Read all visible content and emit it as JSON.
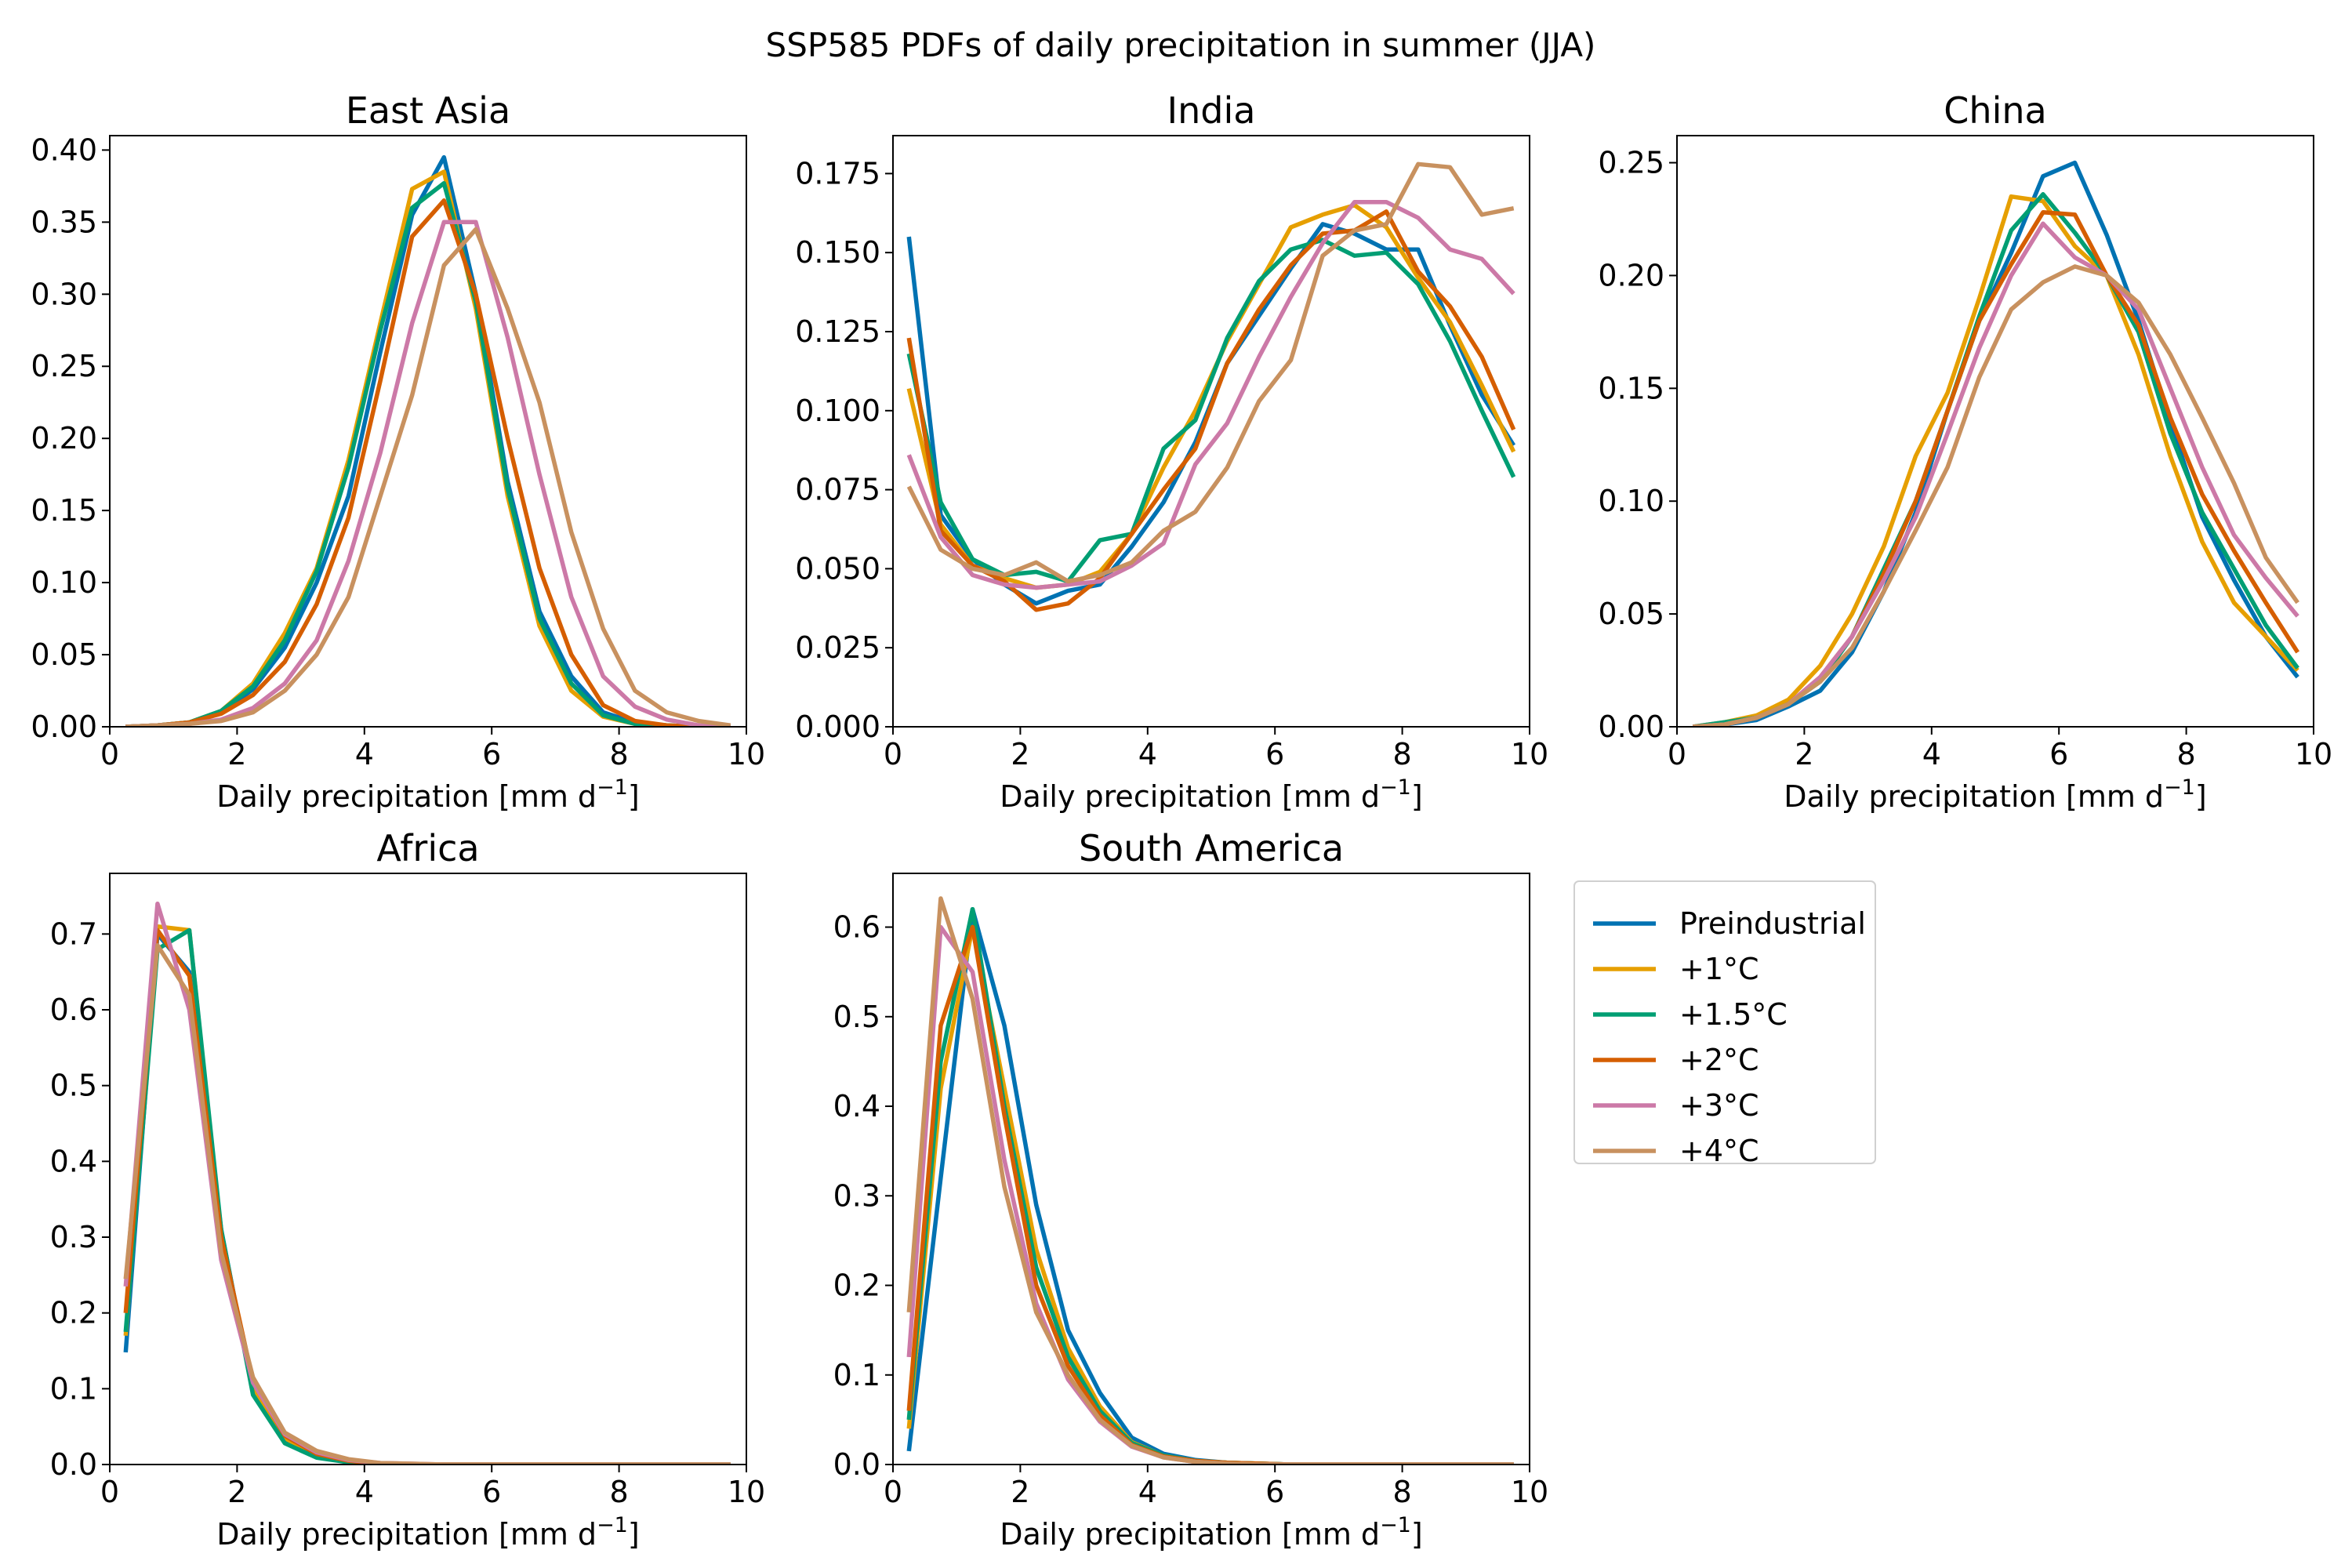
{
  "figure": {
    "title": "SSP585 PDFs of daily precipitation in summer (JJA)"
  },
  "legend": {
    "placement": "right of South America panel",
    "entries": [
      {
        "name": "Preindustrial",
        "color": "#0072b2"
      },
      {
        "name": "+1°C",
        "color": "#e69f00"
      },
      {
        "name": "+1.5°C",
        "color": "#009e73"
      },
      {
        "name": "+2°C",
        "color": "#d55e00"
      },
      {
        "name": "+3°C",
        "color": "#cc79a7"
      },
      {
        "name": "+4°C",
        "color": "#c8915f"
      }
    ]
  },
  "chart_data": [
    {
      "type": "line",
      "title": "East Asia",
      "xlabel_text": "Daily precipitation [mm d",
      "xlabel_sup": "−1",
      "xlabel_end": "]",
      "xlim": [
        0,
        10
      ],
      "ylim": [
        0,
        0.41
      ],
      "xticks": [
        0,
        2,
        4,
        6,
        8,
        10
      ],
      "xtick_labels": [
        "0",
        "2",
        "4",
        "6",
        "8",
        "10"
      ],
      "yticks": [
        0,
        0.05,
        0.1,
        0.15,
        0.2,
        0.25,
        0.3,
        0.35,
        0.4
      ],
      "ytick_labels": [
        "0.00",
        "0.05",
        "0.10",
        "0.15",
        "0.20",
        "0.25",
        "0.30",
        "0.35",
        "0.40"
      ],
      "x": [
        0.25,
        0.75,
        1.25,
        1.75,
        2.25,
        2.75,
        3.25,
        3.75,
        4.25,
        4.75,
        5.25,
        5.75,
        6.25,
        6.75,
        7.25,
        7.75,
        8.25,
        8.75,
        9.25,
        9.75
      ],
      "series": [
        {
          "values": [
            0,
            0.001,
            0.003,
            0.01,
            0.026,
            0.055,
            0.1,
            0.16,
            0.26,
            0.355,
            0.395,
            0.3,
            0.17,
            0.08,
            0.035,
            0.01,
            0.003,
            0.001,
            0,
            0
          ]
        },
        {
          "values": [
            0,
            0.001,
            0.003,
            0.011,
            0.03,
            0.065,
            0.11,
            0.185,
            0.28,
            0.373,
            0.385,
            0.29,
            0.16,
            0.07,
            0.025,
            0.007,
            0.002,
            0.001,
            0,
            0
          ]
        },
        {
          "values": [
            0,
            0.001,
            0.003,
            0.011,
            0.028,
            0.06,
            0.108,
            0.18,
            0.275,
            0.36,
            0.377,
            0.295,
            0.165,
            0.075,
            0.03,
            0.008,
            0.002,
            0.001,
            0,
            0
          ]
        },
        {
          "values": [
            0,
            0.001,
            0.003,
            0.009,
            0.022,
            0.045,
            0.085,
            0.145,
            0.24,
            0.34,
            0.365,
            0.3,
            0.2,
            0.11,
            0.05,
            0.015,
            0.004,
            0.001,
            0,
            0
          ]
        },
        {
          "values": [
            0,
            0.001,
            0.002,
            0.005,
            0.013,
            0.03,
            0.06,
            0.115,
            0.19,
            0.28,
            0.35,
            0.35,
            0.27,
            0.175,
            0.09,
            0.035,
            0.014,
            0.005,
            0.001,
            0
          ]
        },
        {
          "values": [
            0,
            0.001,
            0.002,
            0.004,
            0.01,
            0.025,
            0.05,
            0.09,
            0.16,
            0.23,
            0.32,
            0.345,
            0.29,
            0.225,
            0.135,
            0.068,
            0.025,
            0.01,
            0.004,
            0.001
          ]
        }
      ]
    },
    {
      "type": "line",
      "title": "India",
      "xlabel_text": "Daily precipitation [mm d",
      "xlabel_sup": "−1",
      "xlabel_end": "]",
      "xlim": [
        0,
        10
      ],
      "ylim": [
        0,
        0.187
      ],
      "xticks": [
        0,
        2,
        4,
        6,
        8,
        10
      ],
      "xtick_labels": [
        "0",
        "2",
        "4",
        "6",
        "8",
        "10"
      ],
      "yticks": [
        0,
        0.025,
        0.05,
        0.075,
        0.1,
        0.125,
        0.15,
        0.175
      ],
      "ytick_labels": [
        "0.000",
        "0.025",
        "0.050",
        "0.075",
        "0.100",
        "0.125",
        "0.150",
        "0.175"
      ],
      "x": [
        0.25,
        0.75,
        1.25,
        1.75,
        2.25,
        2.75,
        3.25,
        3.75,
        4.25,
        4.75,
        5.25,
        5.75,
        6.25,
        6.75,
        7.25,
        7.75,
        8.25,
        8.75,
        9.25,
        9.75
      ],
      "series": [
        {
          "values": [
            0.155,
            0.067,
            0.053,
            0.045,
            0.039,
            0.043,
            0.045,
            0.057,
            0.071,
            0.09,
            0.115,
            0.13,
            0.145,
            0.159,
            0.156,
            0.151,
            0.151,
            0.127,
            0.105,
            0.089
          ]
        },
        {
          "values": [
            0.107,
            0.064,
            0.051,
            0.047,
            0.044,
            0.045,
            0.049,
            0.061,
            0.082,
            0.1,
            0.122,
            0.14,
            0.158,
            0.162,
            0.165,
            0.158,
            0.142,
            0.128,
            0.108,
            0.087
          ]
        },
        {
          "values": [
            0.118,
            0.071,
            0.053,
            0.048,
            0.049,
            0.046,
            0.059,
            0.061,
            0.088,
            0.097,
            0.123,
            0.141,
            0.151,
            0.154,
            0.149,
            0.15,
            0.14,
            0.122,
            0.1,
            0.079
          ]
        },
        {
          "values": [
            0.123,
            0.062,
            0.051,
            0.046,
            0.037,
            0.039,
            0.047,
            0.061,
            0.075,
            0.088,
            0.115,
            0.132,
            0.146,
            0.156,
            0.157,
            0.163,
            0.144,
            0.133,
            0.117,
            0.094
          ]
        },
        {
          "values": [
            0.086,
            0.06,
            0.048,
            0.045,
            0.044,
            0.045,
            0.046,
            0.051,
            0.058,
            0.083,
            0.096,
            0.117,
            0.136,
            0.153,
            0.166,
            0.166,
            0.161,
            0.151,
            0.148,
            0.137
          ]
        },
        {
          "values": [
            0.076,
            0.056,
            0.05,
            0.048,
            0.052,
            0.046,
            0.048,
            0.052,
            0.062,
            0.068,
            0.082,
            0.103,
            0.116,
            0.149,
            0.157,
            0.159,
            0.178,
            0.177,
            0.162,
            0.164
          ]
        }
      ]
    },
    {
      "type": "line",
      "title": "China",
      "xlabel_text": "Daily precipitation [mm d",
      "xlabel_sup": "−1",
      "xlabel_end": "]",
      "xlim": [
        0,
        10
      ],
      "ylim": [
        0,
        0.262
      ],
      "xticks": [
        0,
        2,
        4,
        6,
        8,
        10
      ],
      "xtick_labels": [
        "0",
        "2",
        "4",
        "6",
        "8",
        "10"
      ],
      "yticks": [
        0,
        0.05,
        0.1,
        0.15,
        0.2,
        0.25
      ],
      "ytick_labels": [
        "0.00",
        "0.05",
        "0.10",
        "0.15",
        "0.20",
        "0.25"
      ],
      "x": [
        0.25,
        0.75,
        1.25,
        1.75,
        2.25,
        2.75,
        3.25,
        3.75,
        4.25,
        4.75,
        5.25,
        5.75,
        6.25,
        6.75,
        7.25,
        7.75,
        8.25,
        8.75,
        9.25,
        9.75
      ],
      "series": [
        {
          "values": [
            0,
            0.001,
            0.003,
            0.009,
            0.016,
            0.033,
            0.06,
            0.095,
            0.14,
            0.18,
            0.21,
            0.244,
            0.25,
            0.218,
            0.18,
            0.135,
            0.093,
            0.065,
            0.04,
            0.022
          ]
        },
        {
          "values": [
            0,
            0.002,
            0.005,
            0.012,
            0.027,
            0.05,
            0.08,
            0.12,
            0.148,
            0.19,
            0.235,
            0.233,
            0.213,
            0.2,
            0.165,
            0.12,
            0.082,
            0.055,
            0.04,
            0.025
          ]
        },
        {
          "values": [
            0,
            0.002,
            0.004,
            0.01,
            0.02,
            0.04,
            0.07,
            0.1,
            0.14,
            0.182,
            0.22,
            0.236,
            0.219,
            0.2,
            0.175,
            0.13,
            0.095,
            0.07,
            0.045,
            0.026
          ]
        },
        {
          "values": [
            0,
            0.001,
            0.004,
            0.01,
            0.022,
            0.04,
            0.068,
            0.1,
            0.14,
            0.18,
            0.205,
            0.228,
            0.227,
            0.2,
            0.178,
            0.137,
            0.103,
            0.078,
            0.055,
            0.033
          ]
        },
        {
          "values": [
            0,
            0.001,
            0.004,
            0.01,
            0.022,
            0.04,
            0.065,
            0.093,
            0.13,
            0.168,
            0.2,
            0.223,
            0.208,
            0.2,
            0.185,
            0.15,
            0.115,
            0.085,
            0.066,
            0.049
          ]
        },
        {
          "values": [
            0,
            0.001,
            0.004,
            0.01,
            0.02,
            0.035,
            0.06,
            0.087,
            0.115,
            0.155,
            0.185,
            0.197,
            0.204,
            0.2,
            0.188,
            0.165,
            0.137,
            0.108,
            0.075,
            0.055
          ]
        }
      ]
    },
    {
      "type": "line",
      "title": "Africa",
      "xlabel_text": "Daily precipitation [mm d",
      "xlabel_sup": "−1",
      "xlabel_end": "]",
      "xlim": [
        0,
        10
      ],
      "ylim": [
        0,
        0.78
      ],
      "xticks": [
        0,
        2,
        4,
        6,
        8,
        10
      ],
      "xtick_labels": [
        "0",
        "2",
        "4",
        "6",
        "8",
        "10"
      ],
      "yticks": [
        0,
        0.1,
        0.2,
        0.3,
        0.4,
        0.5,
        0.6,
        0.7
      ],
      "ytick_labels": [
        "0.0",
        "0.1",
        "0.2",
        "0.3",
        "0.4",
        "0.5",
        "0.6",
        "0.7"
      ],
      "x": [
        0.25,
        0.75,
        1.25,
        1.75,
        2.25,
        2.75,
        3.25,
        3.75,
        4.25,
        4.75,
        5.25,
        5.75,
        6.25,
        6.75,
        7.25,
        7.75,
        8.25,
        8.75,
        9.25,
        9.75
      ],
      "series": [
        {
          "values": [
            0.148,
            0.7,
            0.65,
            0.31,
            0.095,
            0.03,
            0.01,
            0.003,
            0.001,
            0,
            0,
            0,
            0,
            0,
            0,
            0,
            0,
            0,
            0,
            0
          ]
        },
        {
          "values": [
            0.17,
            0.71,
            0.705,
            0.3,
            0.1,
            0.035,
            0.012,
            0.004,
            0.001,
            0,
            0,
            0,
            0,
            0,
            0,
            0,
            0,
            0,
            0,
            0
          ]
        },
        {
          "values": [
            0.175,
            0.68,
            0.705,
            0.31,
            0.092,
            0.028,
            0.009,
            0.003,
            0.001,
            0,
            0,
            0,
            0,
            0,
            0,
            0,
            0,
            0,
            0,
            0
          ]
        },
        {
          "values": [
            0.2,
            0.705,
            0.645,
            0.3,
            0.11,
            0.038,
            0.014,
            0.005,
            0.001,
            0,
            0,
            0,
            0,
            0,
            0,
            0,
            0,
            0,
            0,
            0
          ]
        },
        {
          "values": [
            0.235,
            0.74,
            0.6,
            0.27,
            0.108,
            0.04,
            0.016,
            0.006,
            0.002,
            0.001,
            0,
            0,
            0,
            0,
            0,
            0,
            0,
            0,
            0,
            0
          ]
        },
        {
          "values": [
            0.245,
            0.685,
            0.62,
            0.28,
            0.115,
            0.042,
            0.018,
            0.007,
            0.002,
            0.001,
            0,
            0,
            0,
            0,
            0,
            0,
            0,
            0,
            0,
            0
          ]
        }
      ]
    },
    {
      "type": "line",
      "title": "South America",
      "xlabel_text": "Daily precipitation [mm d",
      "xlabel_sup": "−1",
      "xlabel_end": "]",
      "xlim": [
        0,
        10
      ],
      "ylim": [
        0,
        0.66
      ],
      "xticks": [
        0,
        2,
        4,
        6,
        8,
        10
      ],
      "xtick_labels": [
        "0",
        "2",
        "4",
        "6",
        "8",
        "10"
      ],
      "yticks": [
        0,
        0.1,
        0.2,
        0.3,
        0.4,
        0.5,
        0.6
      ],
      "ytick_labels": [
        "0.0",
        "0.1",
        "0.2",
        "0.3",
        "0.4",
        "0.5",
        "0.6"
      ],
      "x": [
        0.25,
        0.75,
        1.25,
        1.75,
        2.25,
        2.75,
        3.25,
        3.75,
        4.25,
        4.75,
        5.25,
        5.75,
        6.25,
        6.75,
        7.25,
        7.75,
        8.25,
        8.75,
        9.25,
        9.75
      ],
      "series": [
        {
          "values": [
            0.015,
            0.32,
            0.62,
            0.49,
            0.29,
            0.15,
            0.08,
            0.03,
            0.012,
            0.005,
            0.002,
            0.001,
            0,
            0,
            0,
            0,
            0,
            0,
            0,
            0
          ]
        },
        {
          "values": [
            0.04,
            0.42,
            0.6,
            0.42,
            0.24,
            0.13,
            0.065,
            0.025,
            0.01,
            0.004,
            0.002,
            0.001,
            0,
            0,
            0,
            0,
            0,
            0,
            0,
            0
          ]
        },
        {
          "values": [
            0.05,
            0.45,
            0.62,
            0.4,
            0.22,
            0.12,
            0.06,
            0.024,
            0.01,
            0.004,
            0.002,
            0.001,
            0,
            0,
            0,
            0,
            0,
            0,
            0,
            0
          ]
        },
        {
          "values": [
            0.06,
            0.49,
            0.6,
            0.39,
            0.2,
            0.11,
            0.055,
            0.022,
            0.009,
            0.004,
            0.002,
            0.001,
            0,
            0,
            0,
            0,
            0,
            0,
            0,
            0
          ]
        },
        {
          "values": [
            0.12,
            0.6,
            0.55,
            0.34,
            0.18,
            0.095,
            0.048,
            0.02,
            0.008,
            0.003,
            0.001,
            0,
            0,
            0,
            0,
            0,
            0,
            0,
            0,
            0
          ]
        },
        {
          "values": [
            0.17,
            0.632,
            0.52,
            0.31,
            0.17,
            0.1,
            0.05,
            0.021,
            0.008,
            0.003,
            0.001,
            0,
            0,
            0,
            0,
            0,
            0,
            0,
            0,
            0
          ]
        }
      ]
    }
  ]
}
